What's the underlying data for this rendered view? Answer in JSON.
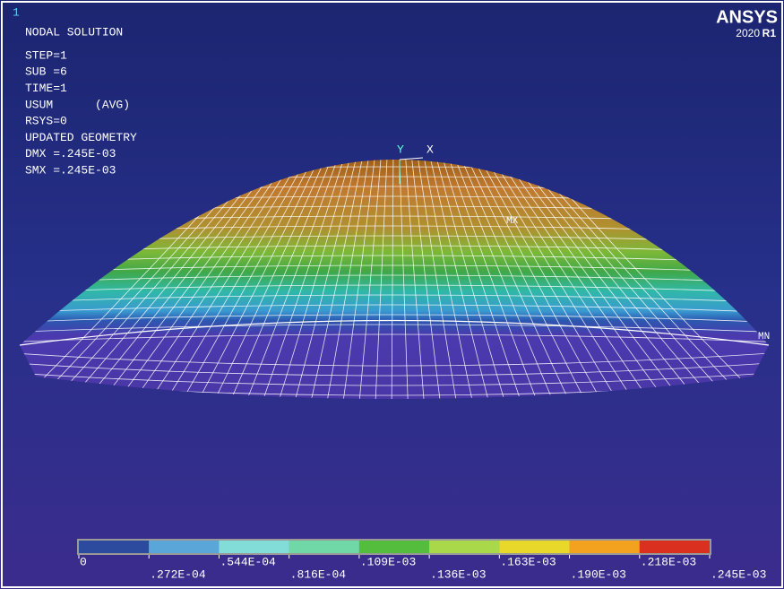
{
  "window_number": "1",
  "logo": {
    "brand": "ANSYS",
    "version": "2020",
    "release": "R1"
  },
  "info": {
    "title": "NODAL SOLUTION",
    "lines": [
      "STEP=1",
      "SUB =6",
      "TIME=1",
      "USUM      (AVG)",
      "RSYS=0",
      "UPDATED GEOMETRY",
      "DMX =.245E-03",
      "SMX =.245E-03"
    ]
  },
  "labels": {
    "max": "MX",
    "min": "MN",
    "axis_x": "X",
    "axis_y": "Y"
  },
  "legend": {
    "colors": [
      "#2c4b9e",
      "#5ba6d9",
      "#82dcd8",
      "#70d8a6",
      "#54bd3e",
      "#a9d84a",
      "#e8d82a",
      "#f2a21f",
      "#d9301f"
    ],
    "labels": [
      "0",
      ".272E-04",
      ".544E-04",
      ".816E-04",
      ".109E-03",
      ".136E-03",
      ".163E-03",
      ".190E-03",
      ".218E-03",
      ".245E-03"
    ]
  }
}
